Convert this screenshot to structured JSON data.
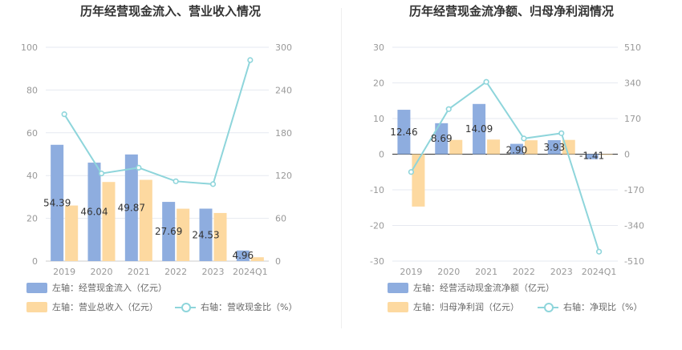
{
  "colors": {
    "bar_blue": "#8eaddf",
    "bar_orange": "#fdd9a0",
    "line_cyan": "#8ed5db",
    "grid": "#e6e9f0",
    "axis_text": "#999999",
    "label_text": "#333333",
    "zero_axis": "#333333"
  },
  "chart_data": [
    {
      "type": "bar",
      "title": "历年经营现金流入、营业收入情况",
      "categories": [
        "2019",
        "2020",
        "2021",
        "2022",
        "2023",
        "2024Q1"
      ],
      "series": [
        {
          "name": "左轴：经营现金流入（亿元）",
          "axis": "left",
          "kind": "bar",
          "color": "#8eaddf",
          "values": [
            54.39,
            46.04,
            49.87,
            27.69,
            24.53,
            4.96
          ],
          "data_labels": [
            "54.39",
            "46.04",
            "49.87",
            "27.69",
            "24.53",
            "4.96"
          ]
        },
        {
          "name": "左轴：营业总收入（亿元）",
          "axis": "left",
          "kind": "bar",
          "color": "#fdd9a0",
          "values": [
            26.0,
            37.0,
            38.0,
            24.5,
            22.5,
            1.8
          ]
        },
        {
          "name": "右轴：营收现金比（%）",
          "axis": "right",
          "kind": "line",
          "color": "#8ed5db",
          "values": [
            206,
            123,
            131,
            112,
            108,
            282
          ]
        }
      ],
      "left_axis": {
        "range": [
          0,
          100
        ],
        "ticks": [
          "0",
          "20",
          "40",
          "60",
          "80",
          "100"
        ]
      },
      "right_axis": {
        "range": [
          0,
          300
        ],
        "ticks": [
          "0",
          "60",
          "120",
          "180",
          "240",
          "300"
        ]
      },
      "grid": true,
      "legend_position": "bottom-left"
    },
    {
      "type": "bar",
      "title": "历年经营现金流净额、归母净利润情况",
      "categories": [
        "2019",
        "2020",
        "2021",
        "2022",
        "2023",
        "2024Q1"
      ],
      "series": [
        {
          "name": "左轴：经营活动现金流净额（亿元）",
          "axis": "left",
          "kind": "bar",
          "color": "#8eaddf",
          "values": [
            12.46,
            8.69,
            14.09,
            2.9,
            3.93,
            -1.41
          ],
          "data_labels": [
            "12.46",
            "8.69",
            "14.09",
            "2.90",
            "3.93",
            "-1.41"
          ]
        },
        {
          "name": "左轴：归母净利润（亿元）",
          "axis": "left",
          "kind": "bar",
          "color": "#fdd9a0",
          "values": [
            -14.7,
            4.0,
            4.1,
            3.9,
            4.0,
            -0.2
          ]
        },
        {
          "name": "右轴：净现比（%）",
          "axis": "right",
          "kind": "line",
          "color": "#8ed5db",
          "values": [
            -85,
            215,
            345,
            75,
            100,
            -465
          ]
        }
      ],
      "left_axis": {
        "range": [
          -30,
          30
        ],
        "ticks": [
          "-30",
          "-20",
          "-10",
          "0",
          "10",
          "20",
          "30"
        ]
      },
      "right_axis": {
        "range": [
          -510,
          510
        ],
        "ticks": [
          "-510",
          "-340",
          "-170",
          "0",
          "170",
          "340",
          "510"
        ]
      },
      "grid": true,
      "legend_position": "bottom-left"
    }
  ]
}
